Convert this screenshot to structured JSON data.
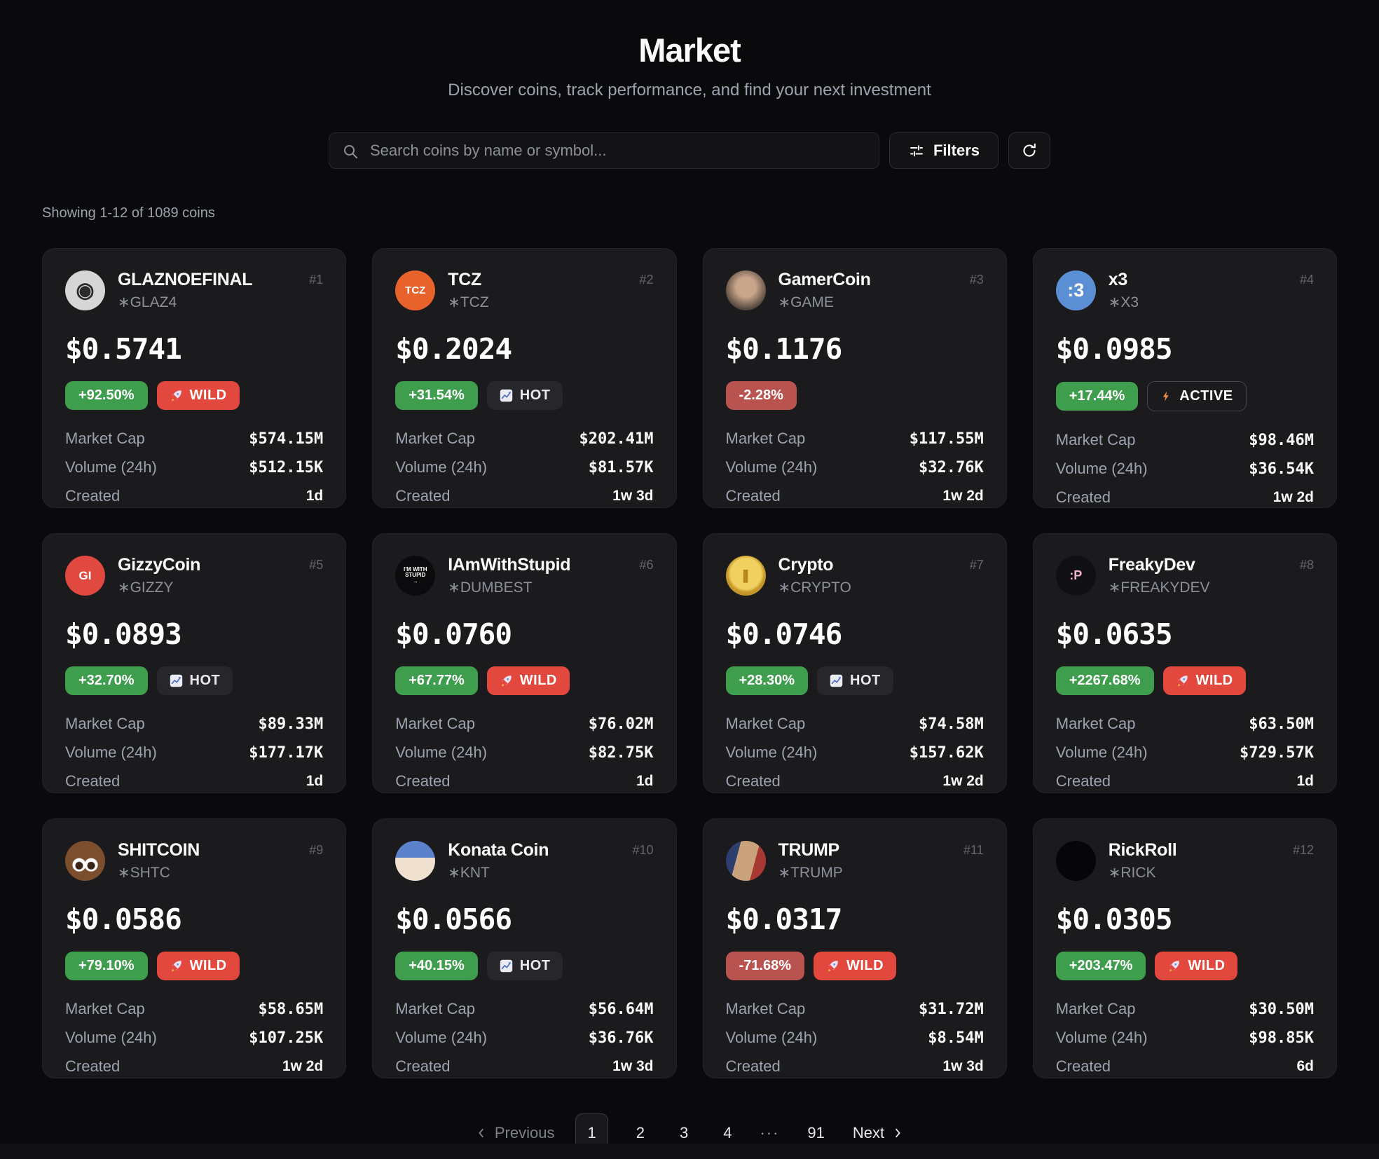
{
  "header": {
    "title": "Market",
    "subtitle": "Discover coins, track performance, and find your next investment",
    "search_placeholder": "Search coins by name or symbol...",
    "filters_label": "Filters"
  },
  "results_summary": "Showing 1-12 of 1089 coins",
  "labels": {
    "market_cap": "Market Cap",
    "volume": "Volume (24h)",
    "created": "Created"
  },
  "colors": {
    "positive_badge": "#3f9e4e",
    "negative_badge": "#b9534f",
    "wild_badge": "#e2483d",
    "hot_badge": "#26262b",
    "card_bg": "#1b1b1e",
    "page_bg": "#0a0a0c"
  },
  "coins": [
    {
      "name": "GLAZNOEFINAL",
      "symbol": "∗GLAZ4",
      "rank": "#1",
      "price": "$0.5741",
      "change": "+92.50%",
      "change_positive": true,
      "tag": "WILD",
      "tag_type": "wild",
      "market_cap": "$574.15M",
      "volume": "$512.15K",
      "created": "1d",
      "avatar": {
        "text": "◉",
        "bg": "#d6d6d6",
        "color": "#2a2a2a",
        "size": 30
      }
    },
    {
      "name": "TCZ",
      "symbol": "∗TCZ",
      "rank": "#2",
      "price": "$0.2024",
      "change": "+31.54%",
      "change_positive": true,
      "tag": "HOT",
      "tag_type": "hot",
      "market_cap": "$202.41M",
      "volume": "$81.57K",
      "created": "1w 3d",
      "avatar": {
        "text": "TCZ",
        "bg": "#e8622c",
        "color": "#fff",
        "size": 15
      }
    },
    {
      "name": "GamerCoin",
      "symbol": "∗GAME",
      "rank": "#3",
      "price": "$0.1176",
      "change": "-2.28%",
      "change_positive": false,
      "tag": null,
      "tag_type": null,
      "market_cap": "$117.55M",
      "volume": "$32.76K",
      "created": "1w 2d",
      "avatar": {
        "text": "",
        "bg": "radial-gradient(circle at 50% 42%, #c9a58a 32%, #4a4038 75%)",
        "color": "#fff",
        "size": 16
      }
    },
    {
      "name": "x3",
      "symbol": "∗X3",
      "rank": "#4",
      "price": "$0.0985",
      "change": "+17.44%",
      "change_positive": true,
      "tag": "ACTIVE",
      "tag_type": "active",
      "market_cap": "$98.46M",
      "volume": "$36.54K",
      "created": "1w 2d",
      "avatar": {
        "text": ":3",
        "bg": "#5b8fd4",
        "color": "#fff",
        "size": 27
      }
    },
    {
      "name": "GizzyCoin",
      "symbol": "∗GIZZY",
      "rank": "#5",
      "price": "$0.0893",
      "change": "+32.70%",
      "change_positive": true,
      "tag": "HOT",
      "tag_type": "hot",
      "market_cap": "$89.33M",
      "volume": "$177.17K",
      "created": "1d",
      "avatar": {
        "text": "GI",
        "bg": "#e04840",
        "color": "#fff",
        "size": 17
      }
    },
    {
      "name": "IAmWithStupid",
      "symbol": "∗DUMBEST",
      "rank": "#6",
      "price": "$0.0760",
      "change": "+67.77%",
      "change_positive": true,
      "tag": "WILD",
      "tag_type": "wild",
      "market_cap": "$76.02M",
      "volume": "$82.75K",
      "created": "1d",
      "avatar": {
        "text": "I'M WITH\nSTUPID\n→",
        "bg": "#0b0b0d",
        "color": "#fff",
        "size": 8
      }
    },
    {
      "name": "Crypto",
      "symbol": "∗CRYPTO",
      "rank": "#7",
      "price": "$0.0746",
      "change": "+28.30%",
      "change_positive": true,
      "tag": "HOT",
      "tag_type": "hot",
      "market_cap": "$74.58M",
      "volume": "$157.62K",
      "created": "1w 2d",
      "avatar": {
        "text": "❚",
        "bg": "radial-gradient(circle at 50% 45%, #f0d060 52%, #c79a2a 62%, #a87f1f 100%)",
        "color": "#b8891f",
        "size": 18
      }
    },
    {
      "name": "FreakyDev",
      "symbol": "∗FREAKYDEV",
      "rank": "#8",
      "price": "$0.0635",
      "change": "+2267.68%",
      "change_positive": true,
      "tag": "WILD",
      "tag_type": "wild",
      "market_cap": "$63.50M",
      "volume": "$729.57K",
      "created": "1d",
      "avatar": {
        "text": ":P",
        "bg": "#101014",
        "color": "#f3b6c8",
        "size": 18
      }
    },
    {
      "name": "SHITCOIN",
      "symbol": "∗SHTC",
      "rank": "#9",
      "price": "$0.0586",
      "change": "+79.10%",
      "change_positive": true,
      "tag": "WILD",
      "tag_type": "wild",
      "market_cap": "$58.65M",
      "volume": "$107.25K",
      "created": "1w 2d",
      "avatar": {
        "text": "",
        "bg": "#7b4f2e",
        "color": "#fff",
        "size": 16,
        "variant": "avatar-poop"
      }
    },
    {
      "name": "Konata Coin",
      "symbol": "∗KNT",
      "rank": "#10",
      "price": "$0.0566",
      "change": "+40.15%",
      "change_positive": true,
      "tag": "HOT",
      "tag_type": "hot",
      "market_cap": "$56.64M",
      "volume": "$36.76K",
      "created": "1w 3d",
      "avatar": {
        "text": "",
        "bg": "linear-gradient(180deg, #5c82cc 0 42%, #f0e0cf 42% 100%)",
        "color": "#fff",
        "size": 16
      }
    },
    {
      "name": "TRUMP",
      "symbol": "∗TRUMP",
      "rank": "#11",
      "price": "$0.0317",
      "change": "-71.68%",
      "change_positive": false,
      "tag": "WILD",
      "tag_type": "wild",
      "market_cap": "$31.72M",
      "volume": "$8.54M",
      "created": "1w 3d",
      "avatar": {
        "text": "",
        "bg": "linear-gradient(105deg, #2e3f6e 0 30%, #caa27c 30% 68%, #a83832 68% 100%)",
        "color": "#fff",
        "size": 16
      }
    },
    {
      "name": "RickRoll",
      "symbol": "∗RICK",
      "rank": "#12",
      "price": "$0.0305",
      "change": "+203.47%",
      "change_positive": true,
      "tag": "WILD",
      "tag_type": "wild",
      "market_cap": "$30.50M",
      "volume": "$98.85K",
      "created": "6d",
      "avatar": {
        "text": "",
        "bg": "#060608",
        "color": "#fff",
        "size": 16
      }
    }
  ],
  "pagination": {
    "previous_label": "Previous",
    "pages": [
      "1",
      "2",
      "3",
      "4"
    ],
    "active_page": "1",
    "ellipsis": "···",
    "last_page": "91",
    "next_label": "Next"
  }
}
